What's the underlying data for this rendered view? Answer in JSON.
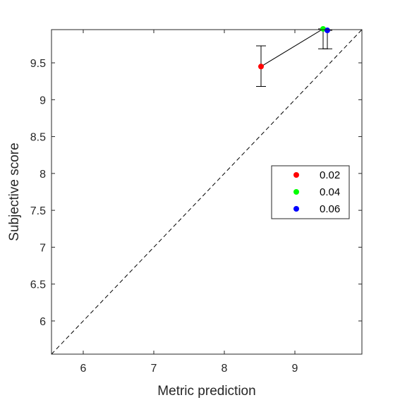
{
  "chart_data": {
    "type": "scatter",
    "title": "",
    "xlabel": "Metric prediction",
    "ylabel": "Subjective score",
    "xlim": [
      5.55,
      9.95
    ],
    "ylim": [
      5.55,
      9.95
    ],
    "xticks": [
      6,
      7,
      8,
      9
    ],
    "yticks": [
      6,
      6.5,
      7,
      7.5,
      8,
      8.5,
      9,
      9.5
    ],
    "xtick_labels": [
      "6",
      "7",
      "8",
      "9"
    ],
    "ytick_labels": [
      "6",
      "6.5",
      "7",
      "7.5",
      "8",
      "8.5",
      "9",
      "9.5"
    ],
    "grid": false,
    "legend_position": "right",
    "reference_line": {
      "style": "dashed",
      "description": "identity y = x"
    },
    "connecting_line": true,
    "series": [
      {
        "name": "0.02",
        "color": "#ff0000",
        "x": 8.52,
        "y": 9.45,
        "err_low": 9.18,
        "err_high": 9.73
      },
      {
        "name": "0.04",
        "color": "#00ff00",
        "x": 9.4,
        "y": 9.96,
        "err_low": 9.69,
        "err_high": 9.96
      },
      {
        "name": "0.06",
        "color": "#0000ff",
        "x": 9.46,
        "y": 9.94,
        "err_low": 9.69,
        "err_high": 9.94
      }
    ]
  }
}
